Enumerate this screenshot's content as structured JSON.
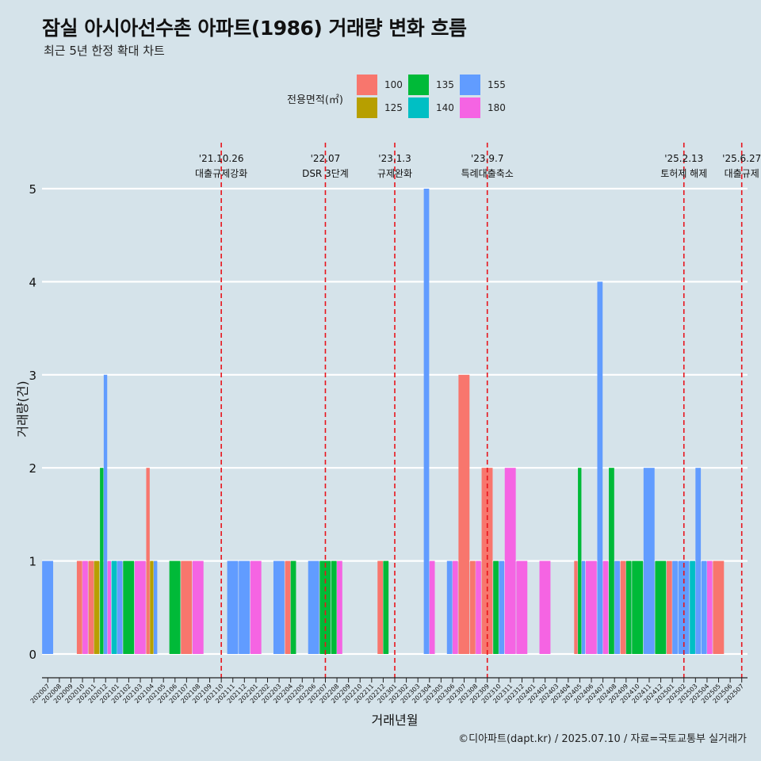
{
  "header": {
    "title": "잠실 아시아선수촌 아파트(1986) 거래량 변화 흐름",
    "subtitle": "최근 5년 한정 확대 차트"
  },
  "footer": {
    "caption": "©디아파트(dapt.kr) / 2025.07.10 / 자료=국토교통부 실거래가"
  },
  "legend": {
    "title": "전용면적(㎡)",
    "items": [
      {
        "label": "100",
        "color": "#F8766D"
      },
      {
        "label": "125",
        "color": "#B79F00"
      },
      {
        "label": "135",
        "color": "#00BA38"
      },
      {
        "label": "140",
        "color": "#00BFC4"
      },
      {
        "label": "155",
        "color": "#619CFF"
      },
      {
        "label": "180",
        "color": "#F564E3"
      }
    ]
  },
  "chart_data": {
    "type": "bar",
    "title": "잠실 아시아선수촌 아파트(1986) 거래량 변화 흐름",
    "subtitle": "최근 5년 한정 확대 차트",
    "xlabel": "거래년월",
    "ylabel": "거래량(건)",
    "ylim": [
      -0.2,
      5.5
    ],
    "yticks": [
      0,
      1,
      2,
      3,
      4,
      5
    ],
    "grid": true,
    "legend_position": "top",
    "categories": [
      "202007",
      "202008",
      "202009",
      "202010",
      "202011",
      "202012",
      "202101",
      "202102",
      "202103",
      "202104",
      "202105",
      "202106",
      "202107",
      "202108",
      "202109",
      "202110",
      "202111",
      "202112",
      "202201",
      "202202",
      "202203",
      "202204",
      "202205",
      "202206",
      "202207",
      "202208",
      "202209",
      "202210",
      "202211",
      "202212",
      "202301",
      "202302",
      "202303",
      "202304",
      "202305",
      "202306",
      "202307",
      "202308",
      "202309",
      "202310",
      "202311",
      "202312",
      "202401",
      "202402",
      "202403",
      "202404",
      "202405",
      "202406",
      "202407",
      "202408",
      "202409",
      "202410",
      "202411",
      "202412",
      "202501",
      "202502",
      "202503",
      "202504",
      "202505",
      "202506",
      "202507"
    ],
    "series": [
      {
        "name": "100",
        "color": "#F8766D",
        "values": [
          0,
          0,
          0,
          1,
          1,
          0,
          0,
          0,
          0,
          2,
          0,
          0,
          1,
          0,
          0,
          0,
          0,
          0,
          0,
          0,
          0,
          1,
          0,
          0,
          0,
          0,
          0,
          0,
          0,
          1,
          0,
          0,
          0,
          0,
          0,
          0,
          3,
          1,
          2,
          0,
          0,
          0,
          0,
          0,
          0,
          0,
          1,
          0,
          0,
          0,
          1,
          0,
          0,
          0,
          1,
          0,
          0,
          0,
          1,
          0,
          0
        ]
      },
      {
        "name": "125",
        "color": "#B79F00",
        "values": [
          0,
          0,
          0,
          0,
          1,
          0,
          0,
          0,
          0,
          1,
          0,
          0,
          0,
          0,
          0,
          0,
          0,
          0,
          0,
          0,
          0,
          0,
          0,
          0,
          0,
          0,
          0,
          0,
          0,
          0,
          0,
          0,
          0,
          0,
          0,
          0,
          0,
          0,
          0,
          0,
          0,
          0,
          0,
          0,
          0,
          0,
          0,
          0,
          0,
          0,
          0,
          0,
          0,
          0,
          0,
          0,
          0,
          0,
          0,
          0,
          0
        ]
      },
      {
        "name": "135",
        "color": "#00BA38",
        "values": [
          0,
          0,
          0,
          0,
          0,
          2,
          0,
          1,
          0,
          0,
          0,
          1,
          0,
          0,
          0,
          0,
          0,
          0,
          0,
          0,
          0,
          1,
          0,
          0,
          1,
          1,
          0,
          0,
          0,
          1,
          0,
          0,
          0,
          0,
          0,
          0,
          0,
          0,
          0,
          1,
          0,
          0,
          0,
          0,
          0,
          0,
          2,
          0,
          0,
          2,
          1,
          1,
          0,
          1,
          0,
          0,
          0,
          0,
          0,
          0,
          0
        ]
      },
      {
        "name": "140",
        "color": "#00BFC4",
        "values": [
          0,
          0,
          0,
          0,
          0,
          0,
          1,
          0,
          0,
          0,
          0,
          0,
          0,
          0,
          0,
          0,
          0,
          0,
          0,
          0,
          0,
          0,
          0,
          0,
          0,
          0,
          0,
          0,
          0,
          0,
          0,
          0,
          0,
          0,
          0,
          0,
          0,
          0,
          0,
          0,
          0,
          0,
          0,
          0,
          0,
          0,
          0,
          0,
          0,
          0,
          0,
          0,
          0,
          0,
          0,
          0,
          1,
          0,
          0,
          0,
          0
        ]
      },
      {
        "name": "155",
        "color": "#619CFF",
        "values": [
          1,
          0,
          0,
          0,
          0,
          3,
          1,
          0,
          0,
          1,
          0,
          0,
          0,
          0,
          0,
          0,
          1,
          1,
          0,
          0,
          1,
          0,
          0,
          1,
          0,
          0,
          0,
          0,
          0,
          0,
          0,
          0,
          0,
          5,
          0,
          1,
          0,
          0,
          0,
          1,
          0,
          0,
          0,
          0,
          0,
          0,
          1,
          0,
          4,
          1,
          0,
          0,
          2,
          0,
          1,
          1,
          2,
          1,
          0,
          0,
          0
        ]
      },
      {
        "name": "180",
        "color": "#F564E3",
        "values": [
          0,
          0,
          0,
          1,
          0,
          1,
          0,
          0,
          1,
          0,
          0,
          0,
          0,
          1,
          0,
          0,
          0,
          0,
          1,
          0,
          0,
          0,
          0,
          0,
          0,
          1,
          0,
          0,
          0,
          0,
          0,
          0,
          0,
          1,
          0,
          1,
          0,
          1,
          0,
          0,
          2,
          1,
          0,
          1,
          0,
          0,
          0,
          1,
          1,
          0,
          0,
          0,
          0,
          0,
          0,
          0,
          0,
          1,
          0,
          0,
          0
        ]
      }
    ],
    "events": [
      {
        "date": "'21.10.26",
        "label": "대출규제강화",
        "month": "202110"
      },
      {
        "date": "'22.07",
        "label": "DSR 3단계",
        "month": "202207"
      },
      {
        "date": "'23.1.3",
        "label": "규제완화",
        "month": "202301"
      },
      {
        "date": "'23.9.7",
        "label": "특례대출축소",
        "month": "202309"
      },
      {
        "date": "'25.2.13",
        "label": "토허제 해제",
        "month": "202502"
      },
      {
        "date": "'25.6.27",
        "label": "대출규제",
        "month": "202507"
      }
    ]
  }
}
